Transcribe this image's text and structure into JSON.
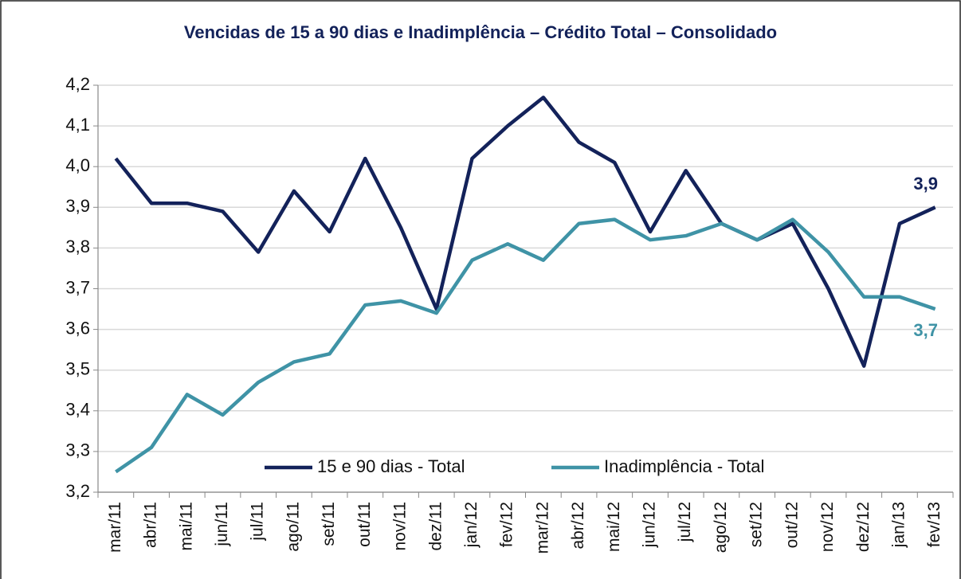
{
  "chart_data": {
    "type": "line",
    "title": "Vencidas de 15 a 90 dias e Inadimplência – Crédito Total – Consolidado",
    "categories": [
      "mar/11",
      "abr/11",
      "mai/11",
      "jun/11",
      "jul/11",
      "ago/11",
      "set/11",
      "out/11",
      "nov/11",
      "dez/11",
      "jan/12",
      "fev/12",
      "mar/12",
      "abr/12",
      "mai/12",
      "jun/12",
      "jul/12",
      "ago/12",
      "set/12",
      "out/12",
      "nov/12",
      "dez/12",
      "jan/13",
      "fev/13"
    ],
    "series": [
      {
        "name": "15 e 90 dias - Total",
        "color": "#13225a",
        "values": [
          4.02,
          3.91,
          3.91,
          3.89,
          3.79,
          3.94,
          3.84,
          4.02,
          3.85,
          3.65,
          4.02,
          4.1,
          4.17,
          4.06,
          4.01,
          3.84,
          3.99,
          3.86,
          3.82,
          3.86,
          3.7,
          3.51,
          3.86,
          3.9
        ],
        "value_labels": [
          null,
          null,
          null,
          null,
          null,
          null,
          null,
          null,
          null,
          null,
          null,
          null,
          null,
          null,
          null,
          null,
          null,
          null,
          null,
          null,
          null,
          null,
          null,
          "3,9"
        ]
      },
      {
        "name": "Inadimplência - Total",
        "color": "#3f93a6",
        "values": [
          3.25,
          3.31,
          3.44,
          3.39,
          3.47,
          3.52,
          3.54,
          3.66,
          3.67,
          3.64,
          3.77,
          3.81,
          3.77,
          3.86,
          3.87,
          3.82,
          3.83,
          3.86,
          3.82,
          3.87,
          3.79,
          3.68,
          3.68,
          3.65
        ],
        "value_labels": [
          null,
          null,
          null,
          null,
          null,
          null,
          null,
          null,
          null,
          null,
          null,
          null,
          null,
          null,
          null,
          null,
          null,
          null,
          null,
          null,
          null,
          null,
          null,
          "3,7"
        ]
      }
    ],
    "ylim": [
      3.2,
      4.2
    ],
    "yticks": [
      {
        "value": 3.2,
        "label": "3,2"
      },
      {
        "value": 3.3,
        "label": "3,3"
      },
      {
        "value": 3.4,
        "label": "3,4"
      },
      {
        "value": 3.5,
        "label": "3,5"
      },
      {
        "value": 3.6,
        "label": "3,6"
      },
      {
        "value": 3.7,
        "label": "3,7"
      },
      {
        "value": 3.8,
        "label": "3,8"
      },
      {
        "value": 3.9,
        "label": "3,9"
      },
      {
        "value": 4.0,
        "label": "4,0"
      },
      {
        "value": 4.1,
        "label": "4,1"
      },
      {
        "value": 4.2,
        "label": "4,2"
      }
    ],
    "grid": true,
    "legend": "bottom"
  }
}
